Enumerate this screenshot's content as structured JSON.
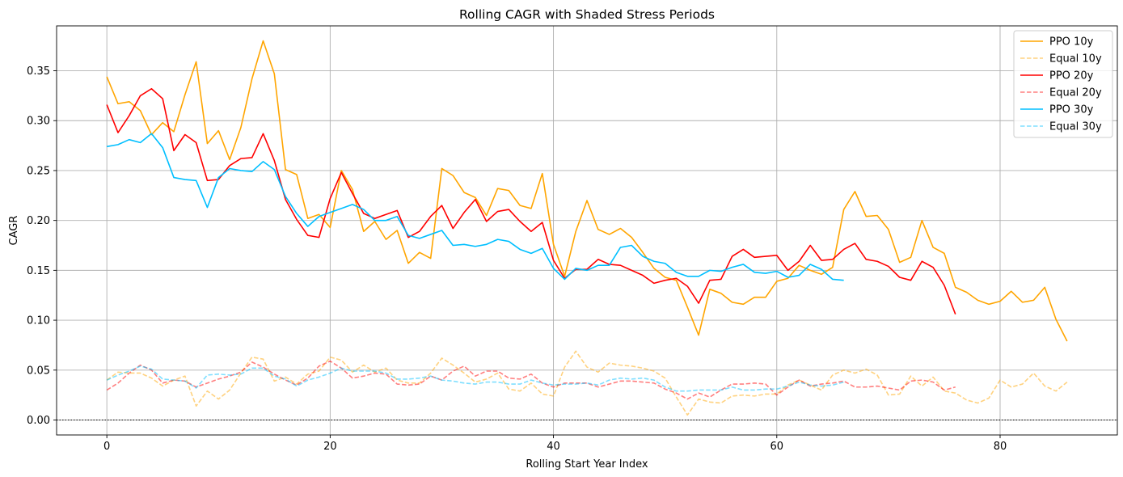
{
  "chart_data": {
    "type": "line",
    "title": "Rolling CAGR with Shaded Stress Periods",
    "xlabel": "Rolling Start Year Index",
    "ylabel": "CAGR",
    "xlim": [
      -4.5,
      90.5
    ],
    "ylim": [
      -0.015,
      0.395
    ],
    "xticks": [
      0,
      20,
      40,
      60,
      80
    ],
    "yticks": [
      0.0,
      0.05,
      0.1,
      0.15,
      0.2,
      0.25,
      0.3,
      0.35
    ],
    "ytick_labels": [
      "0.00",
      "0.05",
      "0.10",
      "0.15",
      "0.20",
      "0.25",
      "0.30",
      "0.35"
    ],
    "grid": true,
    "legend_position": "top-right",
    "reference_line": {
      "y": 0,
      "style": "dotted",
      "color": "#000000"
    },
    "series": [
      {
        "name": "PPO 10y",
        "color": "#ffa500",
        "dash": "solid",
        "opacity": 1,
        "values": [
          0.344,
          0.317,
          0.319,
          0.31,
          0.286,
          0.298,
          0.289,
          0.326,
          0.359,
          0.277,
          0.29,
          0.261,
          0.293,
          0.342,
          0.38,
          0.347,
          0.251,
          0.246,
          0.202,
          0.206,
          0.193,
          0.25,
          0.231,
          0.189,
          0.199,
          0.181,
          0.19,
          0.157,
          0.168,
          0.162,
          0.252,
          0.245,
          0.228,
          0.223,
          0.205,
          0.232,
          0.23,
          0.215,
          0.212,
          0.247,
          0.176,
          0.144,
          0.189,
          0.22,
          0.191,
          0.186,
          0.192,
          0.183,
          0.168,
          0.152,
          0.143,
          0.14,
          0.113,
          0.085,
          0.131,
          0.127,
          0.118,
          0.116,
          0.123,
          0.123,
          0.139,
          0.142,
          0.155,
          0.15,
          0.146,
          0.153,
          0.211,
          0.229,
          0.204,
          0.205,
          0.191,
          0.158,
          0.163,
          0.2,
          0.173,
          0.167,
          0.133,
          0.128,
          0.12,
          0.116,
          0.119,
          0.129,
          0.118,
          0.12,
          0.133,
          0.101,
          0.079
        ]
      },
      {
        "name": "Equal 10y",
        "color": "#ffa500",
        "dash": "dashed",
        "opacity": 0.5,
        "values": [
          0.04,
          0.048,
          0.047,
          0.047,
          0.042,
          0.034,
          0.04,
          0.044,
          0.014,
          0.029,
          0.021,
          0.03,
          0.047,
          0.063,
          0.061,
          0.039,
          0.043,
          0.036,
          0.046,
          0.049,
          0.063,
          0.06,
          0.048,
          0.055,
          0.048,
          0.052,
          0.04,
          0.037,
          0.037,
          0.047,
          0.062,
          0.055,
          0.047,
          0.038,
          0.041,
          0.047,
          0.031,
          0.029,
          0.037,
          0.026,
          0.024,
          0.053,
          0.069,
          0.053,
          0.048,
          0.057,
          0.055,
          0.054,
          0.052,
          0.049,
          0.042,
          0.023,
          0.005,
          0.021,
          0.018,
          0.017,
          0.024,
          0.025,
          0.024,
          0.026,
          0.026,
          0.035,
          0.04,
          0.035,
          0.03,
          0.045,
          0.05,
          0.047,
          0.051,
          0.045,
          0.025,
          0.026,
          0.044,
          0.034,
          0.043,
          0.029,
          0.027,
          0.02,
          0.017,
          0.022,
          0.04,
          0.033,
          0.036,
          0.047,
          0.034,
          0.029,
          0.038
        ]
      },
      {
        "name": "PPO 20y",
        "color": "#ff0000",
        "dash": "solid",
        "opacity": 1,
        "values": [
          0.316,
          0.288,
          0.305,
          0.325,
          0.332,
          0.322,
          0.27,
          0.286,
          0.278,
          0.24,
          0.241,
          0.255,
          0.262,
          0.263,
          0.287,
          0.26,
          0.221,
          0.201,
          0.185,
          0.183,
          0.222,
          0.248,
          0.227,
          0.207,
          0.202,
          0.206,
          0.21,
          0.183,
          0.189,
          0.204,
          0.215,
          0.192,
          0.208,
          0.221,
          0.199,
          0.209,
          0.211,
          0.199,
          0.189,
          0.198,
          0.16,
          0.142,
          0.151,
          0.151,
          0.161,
          0.156,
          0.155,
          0.15,
          0.145,
          0.137,
          0.14,
          0.142,
          0.134,
          0.117,
          0.14,
          0.141,
          0.164,
          0.171,
          0.163,
          0.164,
          0.165,
          0.15,
          0.159,
          0.175,
          0.16,
          0.161,
          0.171,
          0.177,
          0.161,
          0.159,
          0.154,
          0.143,
          0.14,
          0.159,
          0.153,
          0.135,
          0.106
        ]
      },
      {
        "name": "Equal 20y",
        "color": "#ff0000",
        "dash": "dashed",
        "opacity": 0.5,
        "values": [
          0.03,
          0.037,
          0.047,
          0.055,
          0.05,
          0.037,
          0.04,
          0.039,
          0.033,
          0.037,
          0.041,
          0.044,
          0.048,
          0.058,
          0.053,
          0.046,
          0.04,
          0.035,
          0.042,
          0.054,
          0.059,
          0.052,
          0.042,
          0.044,
          0.047,
          0.046,
          0.036,
          0.035,
          0.036,
          0.044,
          0.04,
          0.049,
          0.054,
          0.044,
          0.049,
          0.049,
          0.042,
          0.041,
          0.046,
          0.037,
          0.033,
          0.037,
          0.037,
          0.037,
          0.033,
          0.036,
          0.039,
          0.039,
          0.038,
          0.037,
          0.031,
          0.027,
          0.021,
          0.027,
          0.023,
          0.03,
          0.036,
          0.036,
          0.037,
          0.036,
          0.025,
          0.033,
          0.04,
          0.034,
          0.036,
          0.037,
          0.039,
          0.033,
          0.033,
          0.034,
          0.032,
          0.03,
          0.039,
          0.04,
          0.038,
          0.03,
          0.033
        ]
      },
      {
        "name": "PPO 30y",
        "color": "#00bfff",
        "dash": "solid",
        "opacity": 1,
        "values": [
          0.274,
          0.276,
          0.281,
          0.278,
          0.287,
          0.273,
          0.243,
          0.241,
          0.24,
          0.213,
          0.243,
          0.252,
          0.25,
          0.249,
          0.259,
          0.251,
          0.224,
          0.207,
          0.194,
          0.204,
          0.208,
          0.212,
          0.216,
          0.211,
          0.2,
          0.2,
          0.204,
          0.185,
          0.182,
          0.186,
          0.19,
          0.175,
          0.176,
          0.174,
          0.176,
          0.181,
          0.179,
          0.171,
          0.167,
          0.172,
          0.152,
          0.141,
          0.152,
          0.15,
          0.155,
          0.155,
          0.173,
          0.175,
          0.164,
          0.159,
          0.157,
          0.148,
          0.144,
          0.144,
          0.15,
          0.149,
          0.153,
          0.156,
          0.148,
          0.147,
          0.149,
          0.143,
          0.145,
          0.156,
          0.151,
          0.141,
          0.14
        ]
      },
      {
        "name": "Equal 30y",
        "color": "#00bfff",
        "dash": "dashed",
        "opacity": 0.5,
        "values": [
          0.04,
          0.045,
          0.049,
          0.054,
          0.051,
          0.041,
          0.04,
          0.039,
          0.032,
          0.045,
          0.046,
          0.045,
          0.046,
          0.052,
          0.052,
          0.044,
          0.041,
          0.034,
          0.04,
          0.043,
          0.047,
          0.052,
          0.049,
          0.049,
          0.049,
          0.047,
          0.041,
          0.041,
          0.042,
          0.044,
          0.04,
          0.039,
          0.037,
          0.036,
          0.038,
          0.038,
          0.036,
          0.036,
          0.04,
          0.037,
          0.035,
          0.036,
          0.036,
          0.037,
          0.035,
          0.04,
          0.042,
          0.041,
          0.042,
          0.04,
          0.033,
          0.029,
          0.029,
          0.03,
          0.03,
          0.03,
          0.033,
          0.03,
          0.03,
          0.031,
          0.031,
          0.034,
          0.038,
          0.035,
          0.034,
          0.035,
          0.038
        ]
      }
    ]
  }
}
